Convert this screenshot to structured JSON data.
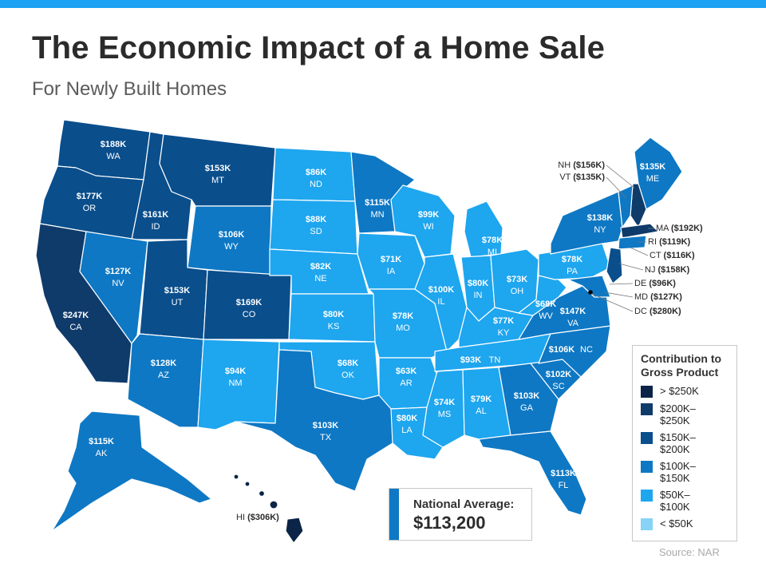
{
  "title": "The Economic Impact of a Home Sale",
  "subtitle": "For Newly Built Homes",
  "colors": {
    "over250": "#0b2447",
    "r200_250": "#0f3b6b",
    "r150_200": "#0a4e8c",
    "r100_150": "#0e78c4",
    "r50_100": "#1ea6ef",
    "under50": "#86d3f7",
    "accent": "#1da1f2"
  },
  "legend": {
    "title": "Contribution to Gross Product",
    "items": [
      {
        "label": "> $250K",
        "color": "#0b2447"
      },
      {
        "label": "$200K–\n$250K",
        "color": "#0f3b6b"
      },
      {
        "label": "$150K–\n$200K",
        "color": "#0a4e8c"
      },
      {
        "label": "$100K–\n$150K",
        "color": "#0e78c4"
      },
      {
        "label": "$50K–\n$100K",
        "color": "#1ea6ef"
      },
      {
        "label": "< $50K",
        "color": "#86d3f7"
      }
    ]
  },
  "national": {
    "label": "National Average:",
    "value": "$113,200"
  },
  "source": "Source: NAR",
  "states": {
    "WA": {
      "value": "$188K",
      "abbr": "WA"
    },
    "OR": {
      "value": "$177K",
      "abbr": "OR"
    },
    "CA": {
      "value": "$247K",
      "abbr": "CA"
    },
    "ID": {
      "value": "$161K",
      "abbr": "ID"
    },
    "NV": {
      "value": "$127K",
      "abbr": "NV"
    },
    "MT": {
      "value": "$153K",
      "abbr": "MT"
    },
    "WY": {
      "value": "$106K",
      "abbr": "WY"
    },
    "UT": {
      "value": "$153K",
      "abbr": "UT"
    },
    "AZ": {
      "value": "$128K",
      "abbr": "AZ"
    },
    "CO": {
      "value": "$169K",
      "abbr": "CO"
    },
    "NM": {
      "value": "$94K",
      "abbr": "NM"
    },
    "ND": {
      "value": "$86K",
      "abbr": "ND"
    },
    "SD": {
      "value": "$88K",
      "abbr": "SD"
    },
    "NE": {
      "value": "$82K",
      "abbr": "NE"
    },
    "KS": {
      "value": "$80K",
      "abbr": "KS"
    },
    "OK": {
      "value": "$68K",
      "abbr": "OK"
    },
    "TX": {
      "value": "$103K",
      "abbr": "TX"
    },
    "MN": {
      "value": "$115K",
      "abbr": "MN"
    },
    "IA": {
      "value": "$71K",
      "abbr": "IA"
    },
    "MO": {
      "value": "$78K",
      "abbr": "MO"
    },
    "AR": {
      "value": "$63K",
      "abbr": "AR"
    },
    "LA": {
      "value": "$80K",
      "abbr": "LA"
    },
    "WI": {
      "value": "$99K",
      "abbr": "WI"
    },
    "IL": {
      "value": "$100K",
      "abbr": "IL"
    },
    "MI": {
      "value": "$78K",
      "abbr": "MI"
    },
    "IN": {
      "value": "$80K",
      "abbr": "IN"
    },
    "OH": {
      "value": "$73K",
      "abbr": "OH"
    },
    "KY": {
      "value": "$77K",
      "abbr": "KY"
    },
    "TN": {
      "value": "$93K",
      "abbr": "TN"
    },
    "MS": {
      "value": "$74K",
      "abbr": "MS"
    },
    "AL": {
      "value": "$79K",
      "abbr": "AL"
    },
    "GA": {
      "value": "$103K",
      "abbr": "GA"
    },
    "FL": {
      "value": "$113K",
      "abbr": "FL"
    },
    "SC": {
      "value": "$102K",
      "abbr": "SC"
    },
    "NC": {
      "value": "$106K",
      "abbr": "NC"
    },
    "VA": {
      "value": "$147K",
      "abbr": "VA"
    },
    "WV": {
      "value": "$68K",
      "abbr": "WV"
    },
    "PA": {
      "value": "$78K",
      "abbr": "PA"
    },
    "NY": {
      "value": "$138K",
      "abbr": "NY"
    },
    "ME": {
      "value": "$135K",
      "abbr": "ME"
    },
    "AK": {
      "value": "$115K",
      "abbr": "AK"
    }
  },
  "callouts": {
    "NH": {
      "abbr": "NH",
      "value": "($156K)"
    },
    "VT": {
      "abbr": "VT",
      "value": "($135K)"
    },
    "MA": {
      "abbr": "MA",
      "value": "($192K)"
    },
    "RI": {
      "abbr": "RI",
      "value": "($119K)"
    },
    "CT": {
      "abbr": "CT",
      "value": "($116K)"
    },
    "NJ": {
      "abbr": "NJ",
      "value": "($158K)"
    },
    "DE": {
      "abbr": "DE",
      "value": "($96K)"
    },
    "MD": {
      "abbr": "MD",
      "value": "($127K)"
    },
    "DC": {
      "abbr": "DC",
      "value": "($280K)"
    },
    "HI": {
      "abbr": "HI",
      "value": "($306K)"
    }
  }
}
